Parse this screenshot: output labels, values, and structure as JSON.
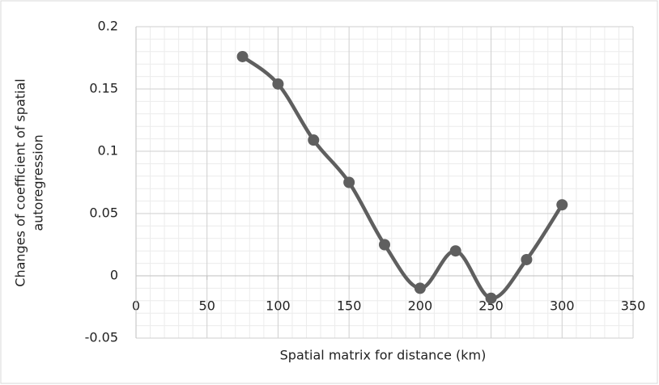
{
  "chart_data": {
    "type": "line",
    "smooth": true,
    "markers": true,
    "x_label": "Spatial matrix for distance (km)",
    "y_label": [
      "Changes of coefficient of spatial",
      "autoregression"
    ],
    "x": [
      75,
      100,
      125,
      150,
      175,
      200,
      225,
      250,
      275,
      300
    ],
    "series": [
      {
        "color": "#5f5f5f",
        "values": [
          0.176,
          0.154,
          0.109,
          0.075,
          0.025,
          -0.01,
          0.02,
          -0.018,
          0.013,
          0.057
        ]
      }
    ],
    "xlim": [
      0,
      350
    ],
    "xticks": [
      0,
      50,
      100,
      150,
      200,
      250,
      300,
      350
    ],
    "ylim": [
      -0.05,
      0.2
    ],
    "yticks": [
      -0.05,
      0,
      0.05,
      0.1,
      0.15,
      0.2
    ],
    "grid": true,
    "minor_grid": true
  }
}
